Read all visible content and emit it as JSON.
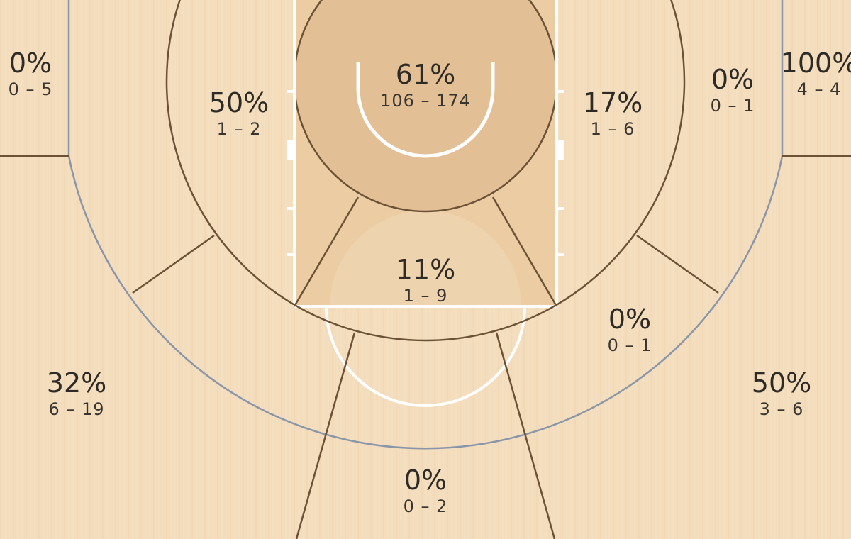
{
  "chart_data": {
    "type": "shot-zone",
    "colors": {
      "floor": "#f3ddbd",
      "paint": "#ebcca3",
      "restricted_area": "#e2bf94",
      "zone_lines": "#6b5236",
      "three_point_line": "#8a96a8",
      "court_lines": "#ffffff"
    },
    "zones": [
      {
        "id": "restricted-area",
        "pct": "61%",
        "made_attempts": "106 – 174"
      },
      {
        "id": "paint-non-ra",
        "pct": "11%",
        "made_attempts": "1 – 9"
      },
      {
        "id": "mid-left-baseline",
        "pct": "50%",
        "made_attempts": "1 – 2"
      },
      {
        "id": "mid-right-baseline",
        "pct": "17%",
        "made_attempts": "1 – 6"
      },
      {
        "id": "mid-right-wing",
        "pct": "0%",
        "made_attempts": "0 – 1"
      },
      {
        "id": "mid-right-elbow",
        "pct": "0%",
        "made_attempts": "0 – 1"
      },
      {
        "id": "left-corner-three",
        "pct": "0%",
        "made_attempts": "0 – 5"
      },
      {
        "id": "right-corner-three",
        "pct": "100%",
        "made_attempts": "4 – 4"
      },
      {
        "id": "left-wing-three",
        "pct": "32%",
        "made_attempts": "6 – 19"
      },
      {
        "id": "right-wing-three",
        "pct": "50%",
        "made_attempts": "3 – 6"
      },
      {
        "id": "top-key-three",
        "pct": "0%",
        "made_attempts": "0 – 2"
      }
    ]
  }
}
